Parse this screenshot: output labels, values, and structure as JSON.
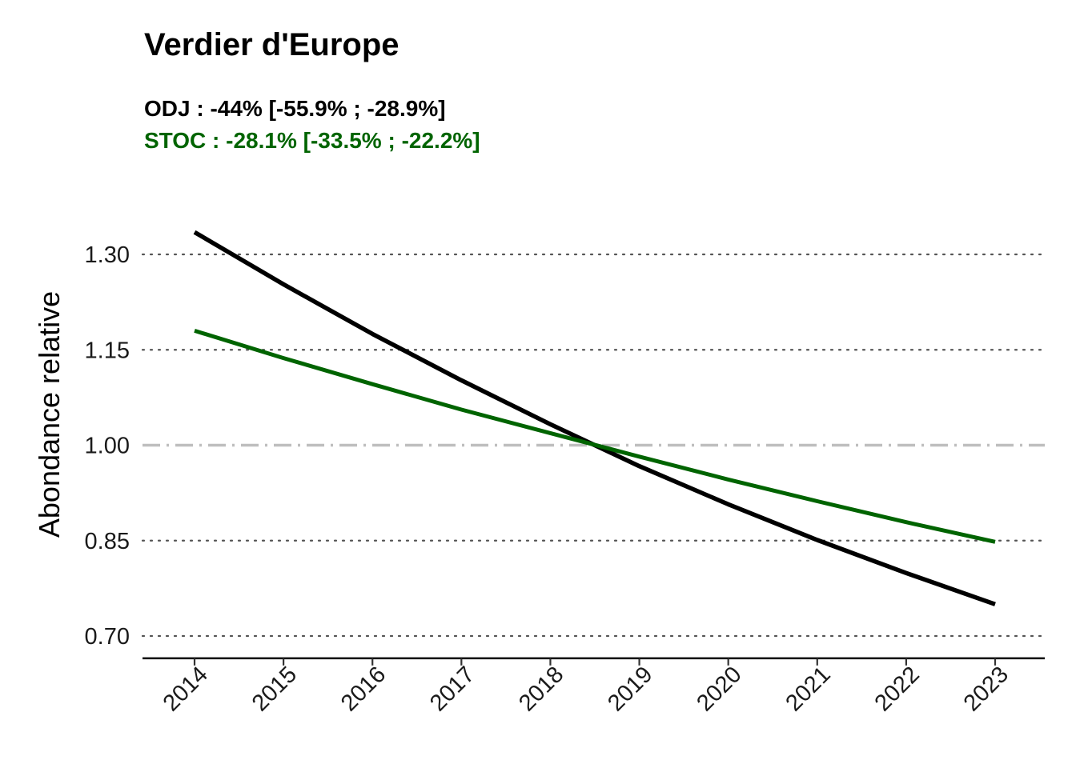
{
  "chart_data": {
    "type": "line",
    "title": "Verdier d'Europe",
    "subtitle_lines": [
      {
        "text": "ODJ : -44% [-55.9% ; -28.9%]",
        "color": "#000000"
      },
      {
        "text": "STOC : -28.1% [-33.5% ; -22.2%]",
        "color": "#006400"
      }
    ],
    "xlabel": "",
    "ylabel": "Abondance relative",
    "x": [
      2014,
      2015,
      2016,
      2017,
      2018,
      2019,
      2020,
      2021,
      2022,
      2023
    ],
    "x_tick_labels": [
      "2014",
      "2015",
      "2016",
      "2017",
      "2018",
      "2019",
      "2020",
      "2021",
      "2022",
      "2023"
    ],
    "y_ticks": [
      0.7,
      0.85,
      1.0,
      1.15,
      1.3
    ],
    "y_tick_labels": [
      "0.70",
      "0.85",
      "1.00",
      "1.15",
      "1.30"
    ],
    "ylim": [
      0.665,
      1.365
    ],
    "reference_line": {
      "y": 1.0,
      "style": "dash-dot",
      "color": "#bebebe"
    },
    "grid": "horizontal dotted",
    "series": [
      {
        "color": "#000000",
        "values": [
          1.335,
          1.253,
          1.175,
          1.102,
          1.033,
          0.967,
          0.907,
          0.851,
          0.799,
          0.75
        ]
      },
      {
        "color": "#006400",
        "values": [
          1.18,
          1.137,
          1.096,
          1.056,
          1.019,
          0.982,
          0.946,
          0.912,
          0.879,
          0.848
        ]
      }
    ]
  }
}
